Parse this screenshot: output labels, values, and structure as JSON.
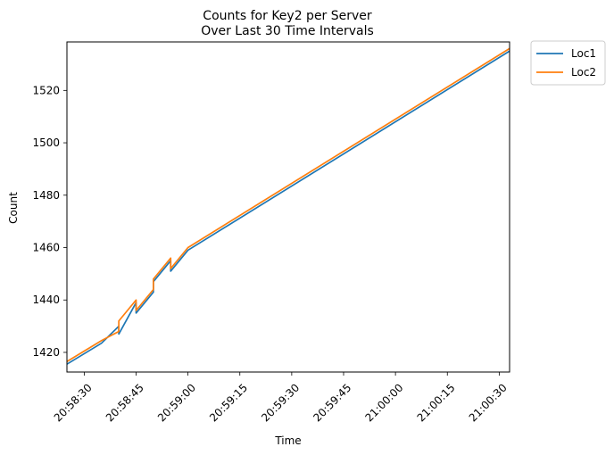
{
  "chart_data": {
    "type": "line",
    "title": "Counts for Key2 per Server",
    "subtitle": "Over Last 30 Time Intervals",
    "xlabel": "Time",
    "ylabel": "Count",
    "x_unit": "time of day (HH:MM:SS)",
    "xlim": [
      "20:58:25",
      "21:00:33"
    ],
    "ylim": [
      1412.5,
      1538.5
    ],
    "x_ticks": [
      "20:58:30",
      "20:58:45",
      "20:59:00",
      "20:59:15",
      "20:59:30",
      "20:59:45",
      "21:00:00",
      "21:00:15",
      "21:00:30"
    ],
    "y_ticks": [
      1420,
      1440,
      1460,
      1480,
      1500,
      1520
    ],
    "grid": false,
    "legend_position": "outside-top-right",
    "series": [
      {
        "name": "Loc1",
        "color": "#1f77b4",
        "points": [
          {
            "x": "20:58:25",
            "y": 1415.5
          },
          {
            "x": "20:58:35",
            "y": 1423.5
          },
          {
            "x": "20:58:40",
            "y": 1430
          },
          {
            "x": "20:58:40",
            "y": 1427
          },
          {
            "x": "20:58:45",
            "y": 1439
          },
          {
            "x": "20:58:45",
            "y": 1435
          },
          {
            "x": "20:58:50",
            "y": 1443
          },
          {
            "x": "20:58:50",
            "y": 1447
          },
          {
            "x": "20:58:55",
            "y": 1455
          },
          {
            "x": "20:58:55",
            "y": 1451
          },
          {
            "x": "20:59:00",
            "y": 1459
          },
          {
            "x": "21:00:33",
            "y": 1535
          }
        ]
      },
      {
        "name": "Loc2",
        "color": "#ff7f0e",
        "points": [
          {
            "x": "20:58:25",
            "y": 1416.5
          },
          {
            "x": "20:58:35",
            "y": 1424.5
          },
          {
            "x": "20:58:40",
            "y": 1428
          },
          {
            "x": "20:58:40",
            "y": 1432
          },
          {
            "x": "20:58:45",
            "y": 1440
          },
          {
            "x": "20:58:45",
            "y": 1436
          },
          {
            "x": "20:58:50",
            "y": 1444
          },
          {
            "x": "20:58:50",
            "y": 1448
          },
          {
            "x": "20:58:55",
            "y": 1456
          },
          {
            "x": "20:58:55",
            "y": 1452
          },
          {
            "x": "20:59:00",
            "y": 1460
          },
          {
            "x": "21:00:33",
            "y": 1536
          }
        ]
      }
    ]
  }
}
